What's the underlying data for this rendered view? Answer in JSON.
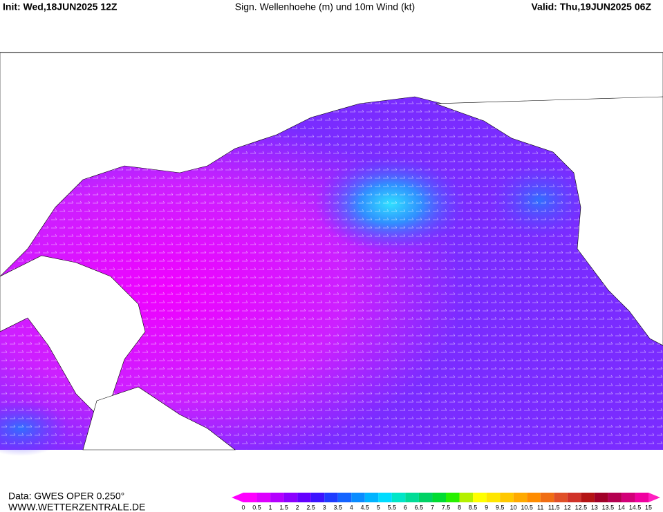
{
  "header": {
    "init": "Init: Wed,18JUN2025 12Z",
    "title": "Sign. Wellenhoehe (m) und 10m Wind (kt)",
    "valid": "Valid: Thu,19JUN2025 06Z"
  },
  "footer": {
    "data": "Data: GWES OPER 0.250°",
    "site": "WWW.WETTERZENTRALE.DE"
  },
  "legend": {
    "labels": [
      "0",
      "0.5",
      "1",
      "1.5",
      "2",
      "2.5",
      "3",
      "3.5",
      "4",
      "4.5",
      "5",
      "5.5",
      "6",
      "6.5",
      "7",
      "7.5",
      "8",
      "8.5",
      "9",
      "9.5",
      "10",
      "10.5",
      "11",
      "11.5",
      "12",
      "12.5",
      "13",
      "13.5",
      "14",
      "14.5",
      "15"
    ],
    "low_color": "#ff00ff",
    "high_color": "#ff20c0",
    "colors": [
      "#ff00ff",
      "#dd00ff",
      "#b400ff",
      "#8c00ff",
      "#6400ff",
      "#3c14ff",
      "#1e3cff",
      "#1464ff",
      "#0a8cff",
      "#00b4ff",
      "#00dcff",
      "#00e6c8",
      "#00dc96",
      "#00d264",
      "#00dc32",
      "#28f000",
      "#b4f000",
      "#ffff00",
      "#ffe600",
      "#ffc800",
      "#ffaa00",
      "#ff8c00",
      "#f06e14",
      "#e05028",
      "#d03228",
      "#b41414",
      "#a00028",
      "#b40050",
      "#d20078",
      "#f000a0"
    ]
  }
}
